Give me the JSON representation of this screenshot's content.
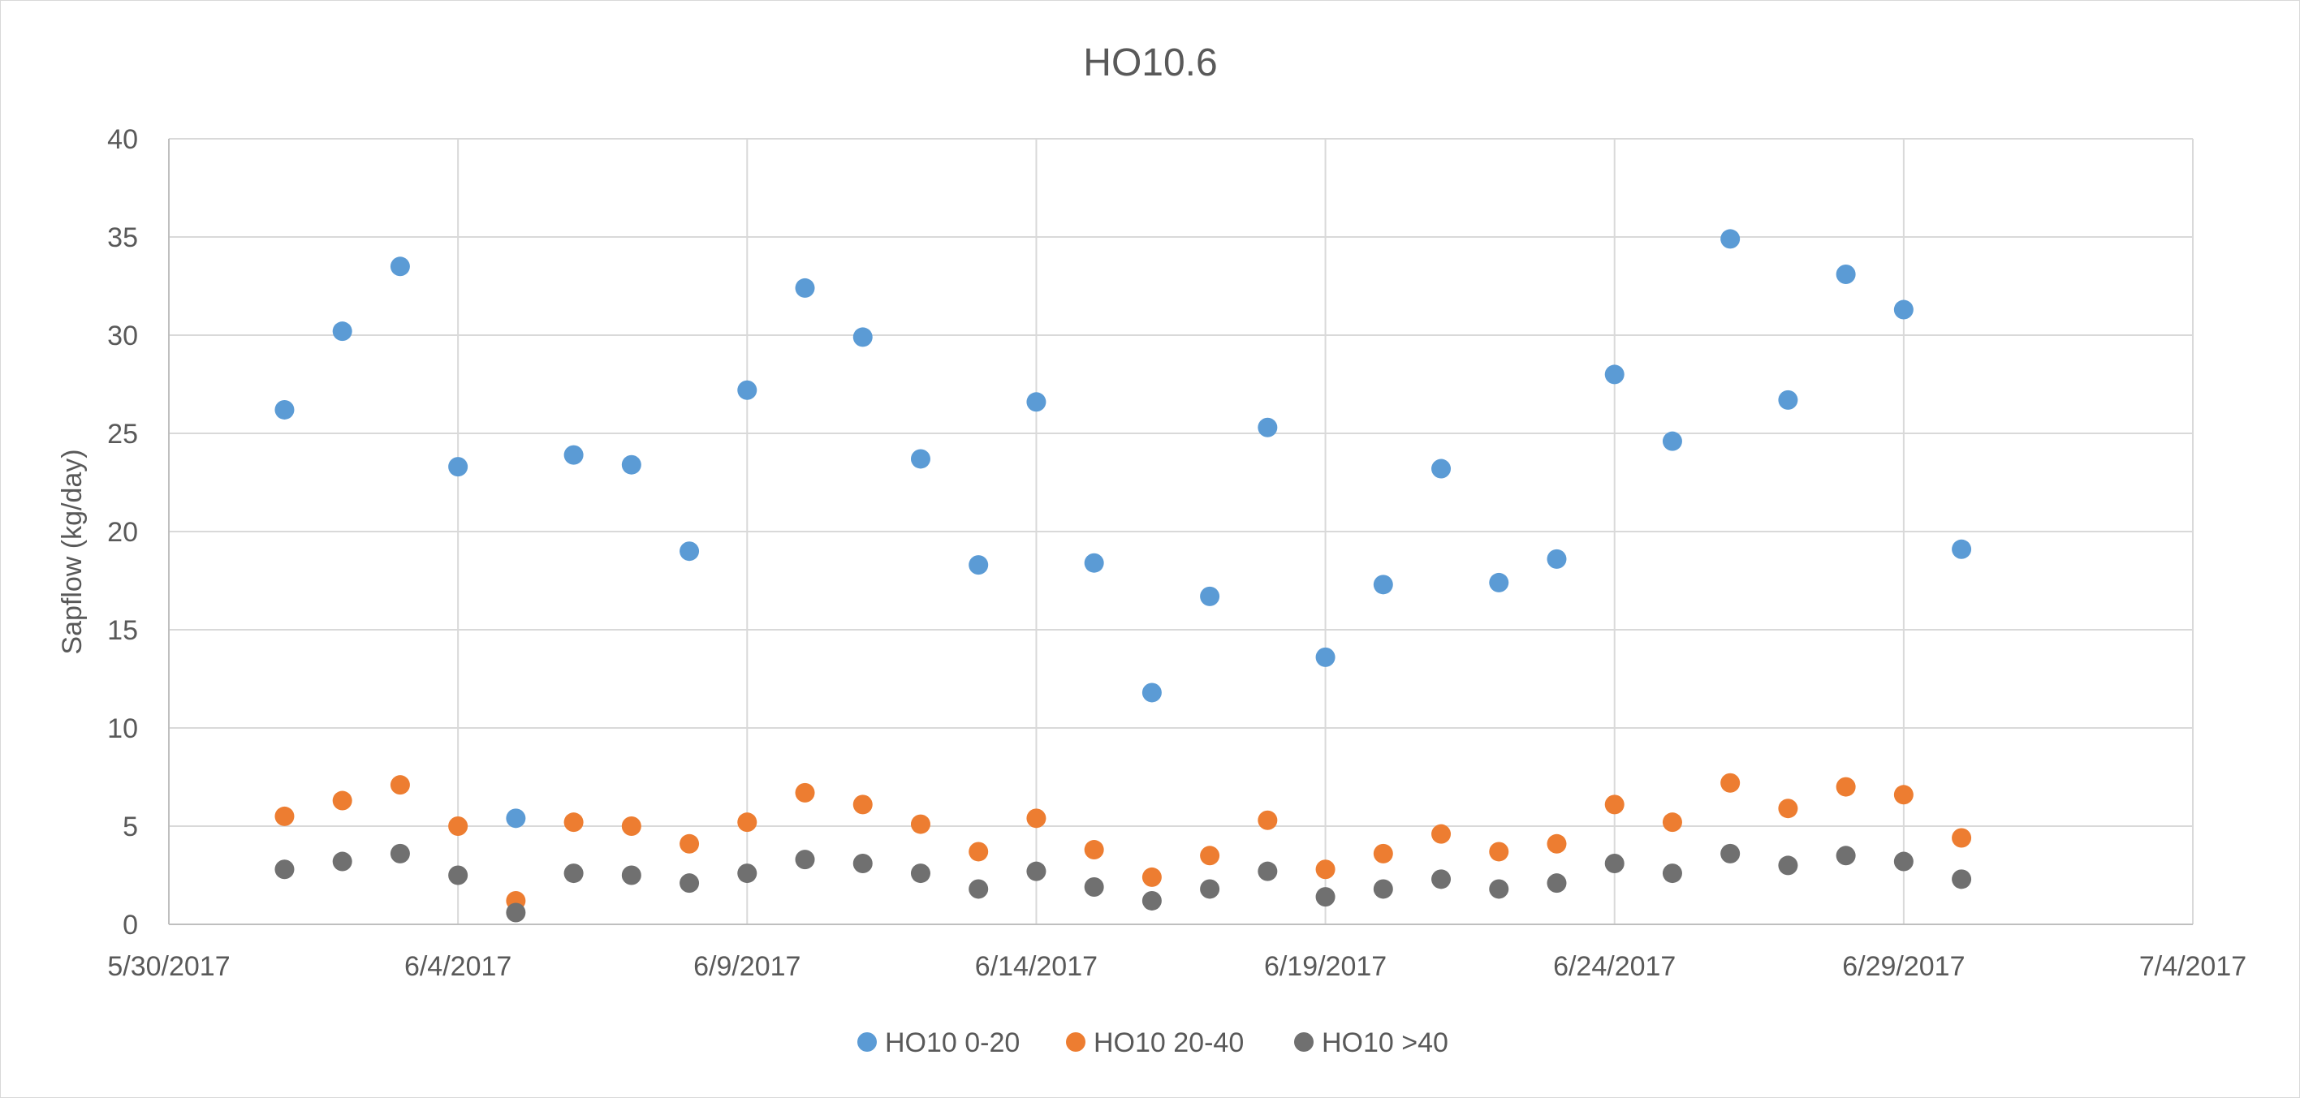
{
  "chart_data": {
    "type": "scatter",
    "title": "HO10.6",
    "xlabel": "",
    "ylabel": "Sapflow (kg/day)",
    "xlim": [
      "2017-05-30",
      "2017-07-04"
    ],
    "ylim": [
      0,
      40
    ],
    "x_ticks": [
      "5/30/2017",
      "6/4/2017",
      "6/9/2017",
      "6/14/2017",
      "6/19/2017",
      "6/24/2017",
      "6/29/2017",
      "7/4/2017"
    ],
    "y_ticks": [
      "0",
      "5",
      "10",
      "15",
      "20",
      "25",
      "30",
      "35",
      "40"
    ],
    "grid": true,
    "legend_position": "bottom",
    "x": [
      "2017-06-01",
      "2017-06-02",
      "2017-06-03",
      "2017-06-04",
      "2017-06-05",
      "2017-06-06",
      "2017-06-07",
      "2017-06-08",
      "2017-06-09",
      "2017-06-10",
      "2017-06-11",
      "2017-06-12",
      "2017-06-13",
      "2017-06-14",
      "2017-06-15",
      "2017-06-16",
      "2017-06-17",
      "2017-06-18",
      "2017-06-19",
      "2017-06-20",
      "2017-06-21",
      "2017-06-22",
      "2017-06-23",
      "2017-06-24",
      "2017-06-25",
      "2017-06-26",
      "2017-06-27",
      "2017-06-28",
      "2017-06-29",
      "2017-06-30"
    ],
    "series": [
      {
        "name": "HO10 0-20",
        "color": "#5b9bd5",
        "values": [
          26.2,
          30.2,
          33.5,
          23.3,
          5.4,
          23.9,
          23.4,
          19.0,
          27.2,
          32.4,
          29.9,
          23.7,
          18.3,
          26.6,
          18.4,
          11.8,
          16.7,
          25.3,
          13.6,
          17.3,
          23.2,
          17.4,
          18.6,
          28.0,
          24.6,
          34.9,
          26.7,
          33.1,
          31.3,
          19.1
        ]
      },
      {
        "name": "HO10 20-40",
        "color": "#ed7d31",
        "values": [
          5.5,
          6.3,
          7.1,
          5.0,
          1.2,
          5.2,
          5.0,
          4.1,
          5.2,
          6.7,
          6.1,
          5.1,
          3.7,
          5.4,
          3.8,
          2.4,
          3.5,
          5.3,
          2.8,
          3.6,
          4.6,
          3.7,
          4.1,
          6.1,
          5.2,
          7.2,
          5.9,
          7.0,
          6.6,
          4.4
        ]
      },
      {
        "name": "HO10 >40",
        "color": "#707070",
        "values": [
          2.8,
          3.2,
          3.6,
          2.5,
          0.6,
          2.6,
          2.5,
          2.1,
          2.6,
          3.3,
          3.1,
          2.6,
          1.8,
          2.7,
          1.9,
          1.2,
          1.8,
          2.7,
          1.4,
          1.8,
          2.3,
          1.8,
          2.1,
          3.1,
          2.6,
          3.6,
          3.0,
          3.5,
          3.2,
          2.3
        ]
      }
    ]
  }
}
